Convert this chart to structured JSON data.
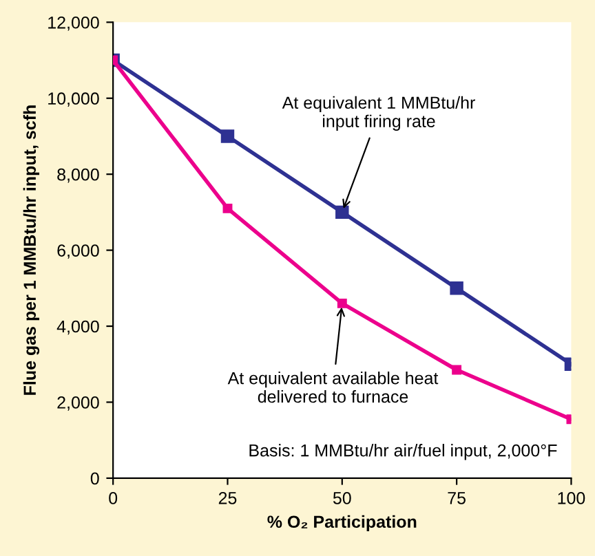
{
  "chart_data": {
    "type": "line",
    "xlabel": "% O₂ Participation",
    "ylabel": "Flue gas per 1 MMBtu/hr input, scfh",
    "x": [
      0,
      25,
      50,
      75,
      100
    ],
    "series": [
      {
        "color": "#2e3192",
        "values": [
          11000,
          9000,
          7000,
          5000,
          3000
        ]
      },
      {
        "color": "#ec008c",
        "values": [
          11000,
          7100,
          4600,
          2850,
          1550
        ]
      }
    ],
    "xlim": [
      0,
      100
    ],
    "xticks": [
      0,
      25,
      50,
      75,
      100
    ],
    "ylim": [
      0,
      12000
    ],
    "yticks": [
      {
        "value": 0,
        "label": "0"
      },
      {
        "value": 2000,
        "label": "2,000"
      },
      {
        "value": 4000,
        "label": "4,000"
      },
      {
        "value": 6000,
        "label": "6,000"
      },
      {
        "value": 8000,
        "label": "8,000"
      },
      {
        "value": 10000,
        "label": "10,000"
      },
      {
        "value": 12000,
        "label": "12,000"
      }
    ],
    "marker": "square",
    "line_style": "solid",
    "grid": false,
    "legend": false,
    "annotations": [
      {
        "text": "At equivalent 1 MMBtu/hr\ninput firing rate",
        "x": 50,
        "y": 7000
      },
      {
        "text": "At equivalent available heat\ndelivered to furnace",
        "x": 50,
        "y": 4600
      },
      "Basis: 1 MMBtu/hr air/fuel input, 2,000°F"
    ]
  }
}
